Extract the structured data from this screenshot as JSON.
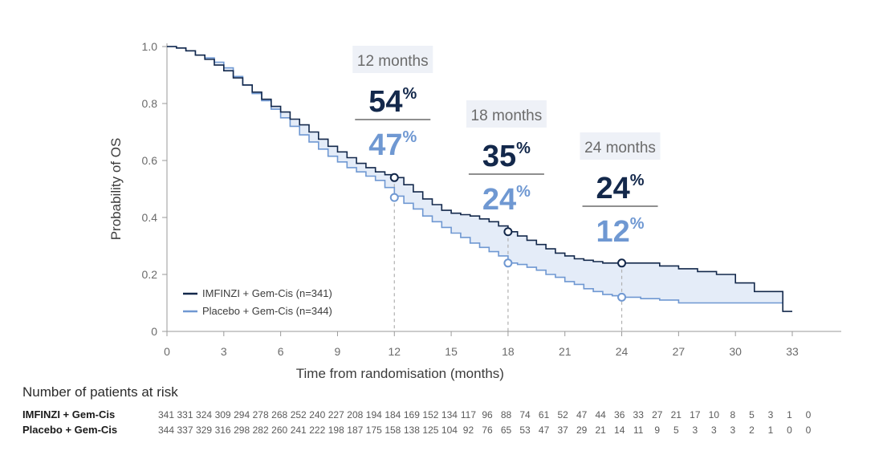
{
  "chart_data": {
    "type": "line",
    "title": "",
    "xlabel": "Time from randomisation (months)",
    "ylabel": "Probability of OS",
    "xlim": [
      0,
      33
    ],
    "ylim": [
      0,
      1.0
    ],
    "x_ticks": [
      0,
      3,
      6,
      9,
      12,
      15,
      18,
      21,
      24,
      27,
      30,
      33
    ],
    "y_ticks": [
      {
        "value": 0,
        "label": "0"
      },
      {
        "value": 0.2,
        "label": "0.2"
      },
      {
        "value": 0.4,
        "label": "0.4"
      },
      {
        "value": 0.6,
        "label": "0.6"
      },
      {
        "value": 0.8,
        "label": "0.8"
      },
      {
        "value": 1.0,
        "label": "1.0"
      }
    ],
    "grid": false,
    "legend_position": "bottom-left",
    "series": [
      {
        "name": "IMFINZI + Gem-Cis (n=341)",
        "color": "#13284b",
        "x": [
          0,
          0.5,
          1,
          1.5,
          2,
          2.5,
          3,
          3.5,
          4,
          4.5,
          5,
          5.5,
          6,
          6.5,
          7,
          7.5,
          8,
          8.5,
          9,
          9.5,
          10,
          10.5,
          11,
          11.5,
          12,
          12.5,
          13,
          13.5,
          14,
          14.5,
          15,
          15.5,
          16,
          16.5,
          17,
          17.5,
          18,
          18.5,
          19,
          19.5,
          20,
          20.5,
          21,
          21.5,
          22,
          22.5,
          23,
          23.5,
          24,
          25,
          26,
          27,
          28,
          29,
          30,
          31,
          32,
          32.5,
          33
        ],
        "y": [
          1.0,
          0.995,
          0.985,
          0.97,
          0.955,
          0.935,
          0.915,
          0.89,
          0.865,
          0.84,
          0.815,
          0.79,
          0.77,
          0.745,
          0.725,
          0.7,
          0.675,
          0.65,
          0.63,
          0.61,
          0.59,
          0.575,
          0.56,
          0.55,
          0.54,
          0.515,
          0.49,
          0.465,
          0.445,
          0.425,
          0.415,
          0.41,
          0.405,
          0.395,
          0.385,
          0.37,
          0.35,
          0.335,
          0.32,
          0.305,
          0.29,
          0.275,
          0.265,
          0.255,
          0.25,
          0.245,
          0.24,
          0.24,
          0.24,
          0.24,
          0.23,
          0.22,
          0.21,
          0.2,
          0.17,
          0.14,
          0.14,
          0.07,
          0.07
        ]
      },
      {
        "name": "Placebo + Gem-Cis (n=344)",
        "color": "#6f98d2",
        "x": [
          0,
          0.5,
          1,
          1.5,
          2,
          2.5,
          3,
          3.5,
          4,
          4.5,
          5,
          5.5,
          6,
          6.5,
          7,
          7.5,
          8,
          8.5,
          9,
          9.5,
          10,
          10.5,
          11,
          11.5,
          12,
          12.5,
          13,
          13.5,
          14,
          14.5,
          15,
          15.5,
          16,
          16.5,
          17,
          17.5,
          18,
          18.5,
          19,
          19.5,
          20,
          20.5,
          21,
          21.5,
          22,
          22.5,
          23,
          23.5,
          24,
          25,
          26,
          27,
          28,
          29,
          30,
          31,
          32,
          32.5
        ],
        "y": [
          1.0,
          0.995,
          0.985,
          0.97,
          0.96,
          0.945,
          0.925,
          0.895,
          0.865,
          0.835,
          0.81,
          0.78,
          0.75,
          0.72,
          0.69,
          0.665,
          0.64,
          0.615,
          0.595,
          0.575,
          0.56,
          0.545,
          0.53,
          0.505,
          0.475,
          0.45,
          0.43,
          0.405,
          0.385,
          0.365,
          0.345,
          0.33,
          0.31,
          0.295,
          0.28,
          0.265,
          0.24,
          0.235,
          0.225,
          0.215,
          0.2,
          0.19,
          0.175,
          0.165,
          0.15,
          0.14,
          0.13,
          0.125,
          0.12,
          0.115,
          0.11,
          0.1,
          0.1,
          0.1,
          0.1,
          0.1,
          0.1,
          0.1
        ]
      }
    ],
    "annotations": [
      {
        "month": 12,
        "label": "12 months",
        "top_pct": "54",
        "bottom_pct": "47",
        "top_value": 0.54,
        "bottom_value": 0.47
      },
      {
        "month": 18,
        "label": "18 months",
        "top_pct": "35",
        "bottom_pct": "24",
        "top_value": 0.35,
        "bottom_value": 0.24
      },
      {
        "month": 24,
        "label": "24 months",
        "top_pct": "24",
        "bottom_pct": "12",
        "top_value": 0.24,
        "bottom_value": 0.12
      }
    ],
    "percent_sign": "%"
  },
  "risk_table": {
    "title": "Number of patients at risk",
    "rows": [
      {
        "name": "IMFINZI + Gem-Cis",
        "values": [
          "341",
          "331",
          "324",
          "309",
          "294",
          "278",
          "268",
          "252",
          "240",
          "227",
          "208",
          "194",
          "184",
          "169",
          "152",
          "134",
          "117",
          "96",
          "88",
          "74",
          "61",
          "52",
          "47",
          "44",
          "36",
          "33",
          "27",
          "21",
          "17",
          "10",
          "8",
          "5",
          "3",
          "1",
          "0"
        ]
      },
      {
        "name": "Placebo + Gem-Cis",
        "values": [
          "344",
          "337",
          "329",
          "316",
          "298",
          "282",
          "260",
          "241",
          "222",
          "198",
          "187",
          "175",
          "158",
          "138",
          "125",
          "104",
          "92",
          "76",
          "65",
          "53",
          "47",
          "37",
          "29",
          "21",
          "14",
          "11",
          "9",
          "5",
          "3",
          "3",
          "3",
          "2",
          "1",
          "0",
          "0"
        ]
      }
    ]
  }
}
